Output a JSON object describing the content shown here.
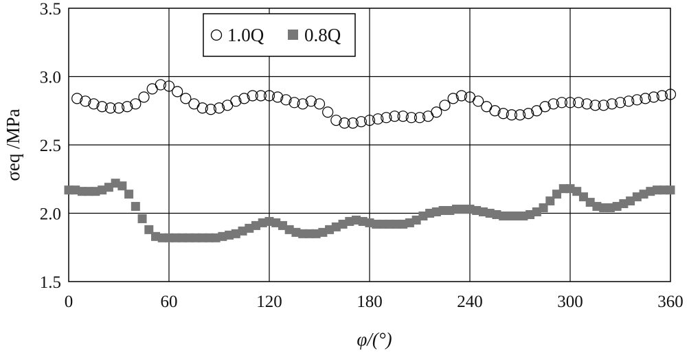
{
  "chart_data": {
    "type": "scatter",
    "xlabel": "φ/(°)",
    "ylabel": "σeq /MPa",
    "xlim": [
      0,
      360
    ],
    "ylim": [
      1.5,
      3.5
    ],
    "xticks": [
      "0",
      "60",
      "120",
      "180",
      "240",
      "300",
      "360"
    ],
    "yticks": [
      "1.5",
      "2.0",
      "2.5",
      "3.0",
      "3.5"
    ],
    "grid": true,
    "legend_position": "top-left",
    "series": [
      {
        "name": "1.0Q",
        "marker": "open-circle",
        "color": "#000000",
        "x": [
          5,
          10,
          15,
          20,
          25,
          30,
          35,
          40,
          45,
          50,
          55,
          60,
          65,
          70,
          75,
          80,
          85,
          90,
          95,
          100,
          105,
          110,
          115,
          120,
          125,
          130,
          135,
          140,
          145,
          150,
          155,
          160,
          165,
          170,
          175,
          180,
          185,
          190,
          195,
          200,
          205,
          210,
          215,
          220,
          225,
          230,
          235,
          240,
          245,
          250,
          255,
          260,
          265,
          270,
          275,
          280,
          285,
          290,
          295,
          300,
          305,
          310,
          315,
          320,
          325,
          330,
          335,
          340,
          345,
          350,
          355,
          360
        ],
        "values": [
          2.84,
          2.82,
          2.8,
          2.78,
          2.77,
          2.77,
          2.78,
          2.8,
          2.85,
          2.91,
          2.94,
          2.93,
          2.89,
          2.84,
          2.8,
          2.77,
          2.76,
          2.77,
          2.79,
          2.82,
          2.84,
          2.86,
          2.86,
          2.86,
          2.85,
          2.83,
          2.81,
          2.8,
          2.82,
          2.8,
          2.74,
          2.68,
          2.66,
          2.66,
          2.67,
          2.68,
          2.69,
          2.7,
          2.71,
          2.71,
          2.7,
          2.7,
          2.71,
          2.74,
          2.79,
          2.84,
          2.86,
          2.85,
          2.82,
          2.78,
          2.75,
          2.73,
          2.72,
          2.72,
          2.73,
          2.75,
          2.78,
          2.8,
          2.81,
          2.81,
          2.81,
          2.8,
          2.79,
          2.79,
          2.8,
          2.81,
          2.82,
          2.83,
          2.84,
          2.85,
          2.86,
          2.87
        ]
      },
      {
        "name": "0.8Q",
        "marker": "filled-square",
        "color": "#777777",
        "x": [
          0,
          4,
          8,
          12,
          16,
          20,
          24,
          28,
          32,
          36,
          40,
          44,
          48,
          52,
          56,
          60,
          64,
          68,
          72,
          76,
          80,
          84,
          88,
          92,
          96,
          100,
          104,
          108,
          112,
          116,
          120,
          124,
          128,
          132,
          136,
          140,
          144,
          148,
          152,
          156,
          160,
          164,
          168,
          172,
          176,
          180,
          184,
          188,
          192,
          196,
          200,
          204,
          208,
          212,
          216,
          220,
          224,
          228,
          232,
          236,
          240,
          244,
          248,
          252,
          256,
          260,
          264,
          268,
          272,
          276,
          280,
          284,
          288,
          292,
          296,
          300,
          304,
          308,
          312,
          316,
          320,
          324,
          328,
          332,
          336,
          340,
          344,
          348,
          352,
          356,
          360
        ],
        "values": [
          2.17,
          2.17,
          2.16,
          2.16,
          2.16,
          2.17,
          2.19,
          2.22,
          2.2,
          2.14,
          2.05,
          1.96,
          1.88,
          1.83,
          1.82,
          1.82,
          1.82,
          1.82,
          1.82,
          1.82,
          1.82,
          1.82,
          1.82,
          1.83,
          1.84,
          1.85,
          1.87,
          1.89,
          1.91,
          1.93,
          1.94,
          1.93,
          1.91,
          1.88,
          1.86,
          1.85,
          1.85,
          1.85,
          1.86,
          1.88,
          1.9,
          1.92,
          1.94,
          1.95,
          1.94,
          1.93,
          1.92,
          1.92,
          1.92,
          1.92,
          1.92,
          1.93,
          1.95,
          1.98,
          2.0,
          2.01,
          2.02,
          2.02,
          2.03,
          2.03,
          2.03,
          2.02,
          2.01,
          2.0,
          1.99,
          1.98,
          1.98,
          1.98,
          1.98,
          1.99,
          2.01,
          2.04,
          2.09,
          2.14,
          2.18,
          2.18,
          2.16,
          2.12,
          2.08,
          2.05,
          2.04,
          2.04,
          2.05,
          2.07,
          2.09,
          2.12,
          2.14,
          2.16,
          2.17,
          2.17,
          2.17
        ]
      }
    ]
  }
}
